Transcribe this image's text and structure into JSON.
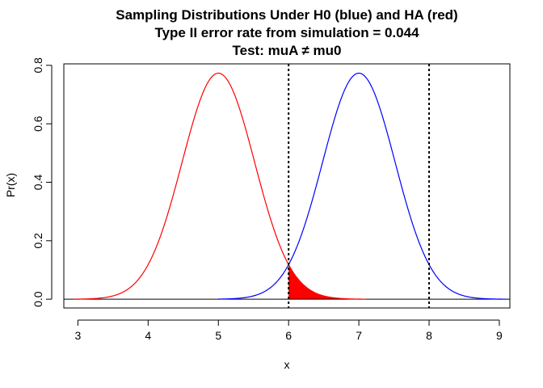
{
  "chart_data": {
    "type": "line",
    "title_lines": [
      "Sampling Distributions Under H0 (blue) and HA (red)",
      "Type II error rate from simulation = 0.044",
      "Test: muA ≠ mu0"
    ],
    "xlabel": "x",
    "ylabel": "Pr(x)",
    "xlim": [
      2.8,
      9.15
    ],
    "ylim": [
      -0.03,
      0.805
    ],
    "x_ticks": [
      3,
      4,
      5,
      6,
      7,
      8,
      9
    ],
    "y_ticks": [
      0.0,
      0.2,
      0.4,
      0.6,
      0.8
    ],
    "series": [
      {
        "distribution": "normal",
        "mean": 7,
        "sd": 0.516,
        "x_range": [
          5,
          9.1
        ],
        "color": "#0000ff"
      },
      {
        "distribution": "normal",
        "mean": 5,
        "sd": 0.516,
        "x_range": [
          2.95,
          7.1
        ],
        "color": "#ff0000"
      }
    ],
    "critical_values": [
      6,
      8
    ],
    "shaded_region": {
      "from": 6,
      "to": 7.1,
      "series_index": 1,
      "color": "#ff0000"
    },
    "baseline_y": 0,
    "grid": false
  }
}
